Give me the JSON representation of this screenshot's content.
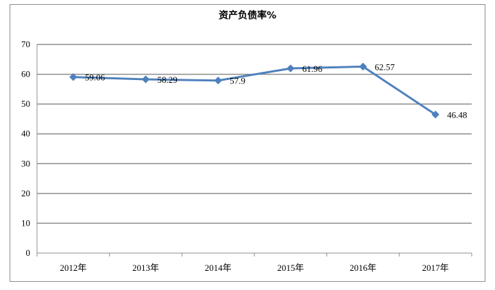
{
  "chart_data": {
    "type": "line",
    "title": "资产负债率%",
    "categories": [
      "2012年",
      "2013年",
      "2014年",
      "2015年",
      "2016年",
      "2017年"
    ],
    "series": [
      {
        "values": [
          59.06,
          58.29,
          57.9,
          61.96,
          62.57,
          46.48
        ]
      }
    ],
    "data_labels": [
      "59.06",
      "58.29",
      "57.9",
      "61.96",
      "62.57",
      "46.48"
    ],
    "y_ticks": [
      "0",
      "10",
      "20",
      "30",
      "40",
      "50",
      "60",
      "70"
    ],
    "ylim": [
      0,
      70
    ],
    "grid": true,
    "legend": "none",
    "colors": {
      "line": "#4f81bd",
      "grid": "#8c8c8c",
      "axis": "#8c8c8c"
    }
  }
}
